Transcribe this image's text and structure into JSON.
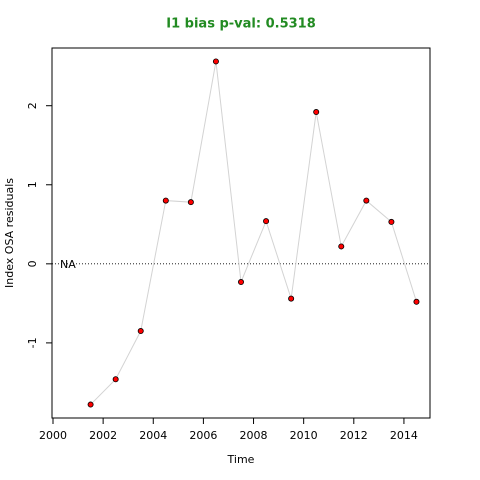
{
  "chart_data": {
    "type": "line",
    "title": "I1 bias p-val: 0.5318",
    "x_label": "Time",
    "y_label": "Index OSA residuals",
    "x": [
      2001.5,
      2002.5,
      2003.5,
      2004.5,
      2005.5,
      2006.5,
      2007.5,
      2008.5,
      2009.5,
      2010.5,
      2011.5,
      2012.5,
      2013.5,
      2014.5
    ],
    "series": [
      {
        "color": "#ff0000",
        "line_color": "#d3d3d3",
        "values": [
          -1.78,
          -1.46,
          -0.85,
          0.8,
          0.78,
          2.56,
          -0.23,
          0.54,
          -0.44,
          1.92,
          0.22,
          0.8,
          0.53,
          -0.48
        ]
      }
    ],
    "xlim": [
      2000,
      2015
    ],
    "ylim": [
      -1.95,
      2.73
    ],
    "xticks": [
      2000,
      2002,
      2004,
      2006,
      2008,
      2010,
      2012,
      2014
    ],
    "yticks": [
      -1,
      0,
      1,
      2
    ],
    "hline": 0,
    "hline_label": "NA"
  }
}
